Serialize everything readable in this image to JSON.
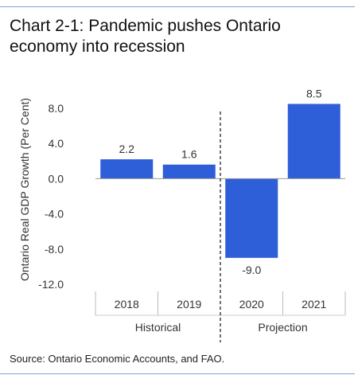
{
  "title": "Chart 2-1: Pandemic pushes Ontario economy into recession",
  "source": "Source: Ontario Economic Accounts, and FAO.",
  "colors": {
    "bar": "#2e5fd8",
    "rule": "#7f9fd6",
    "axis": "#999999"
  },
  "chart_data": {
    "type": "bar",
    "categories": [
      "2018",
      "2019",
      "2020",
      "2021"
    ],
    "values": [
      2.2,
      1.6,
      -9.0,
      8.5
    ],
    "value_labels": [
      "2.2",
      "1.6",
      "-9.0",
      "8.5"
    ],
    "ylabel": "Ontario Real GDP Growth (Per Cent)",
    "xlabel": "",
    "ylim": [
      -12.0,
      8.0
    ],
    "yticks": [
      8.0,
      4.0,
      0.0,
      -4.0,
      -8.0,
      -12.0
    ],
    "ytick_labels": [
      "8.0",
      "4.0",
      "0.0",
      "-4.0",
      "-8.0",
      "-12.0"
    ],
    "groups": [
      {
        "label": "Historical",
        "categories": [
          "2018",
          "2019"
        ]
      },
      {
        "label": "Projection",
        "categories": [
          "2020",
          "2021"
        ]
      }
    ],
    "divider": "between 2019 and 2020, dashed",
    "grid": false,
    "legend": "none"
  }
}
